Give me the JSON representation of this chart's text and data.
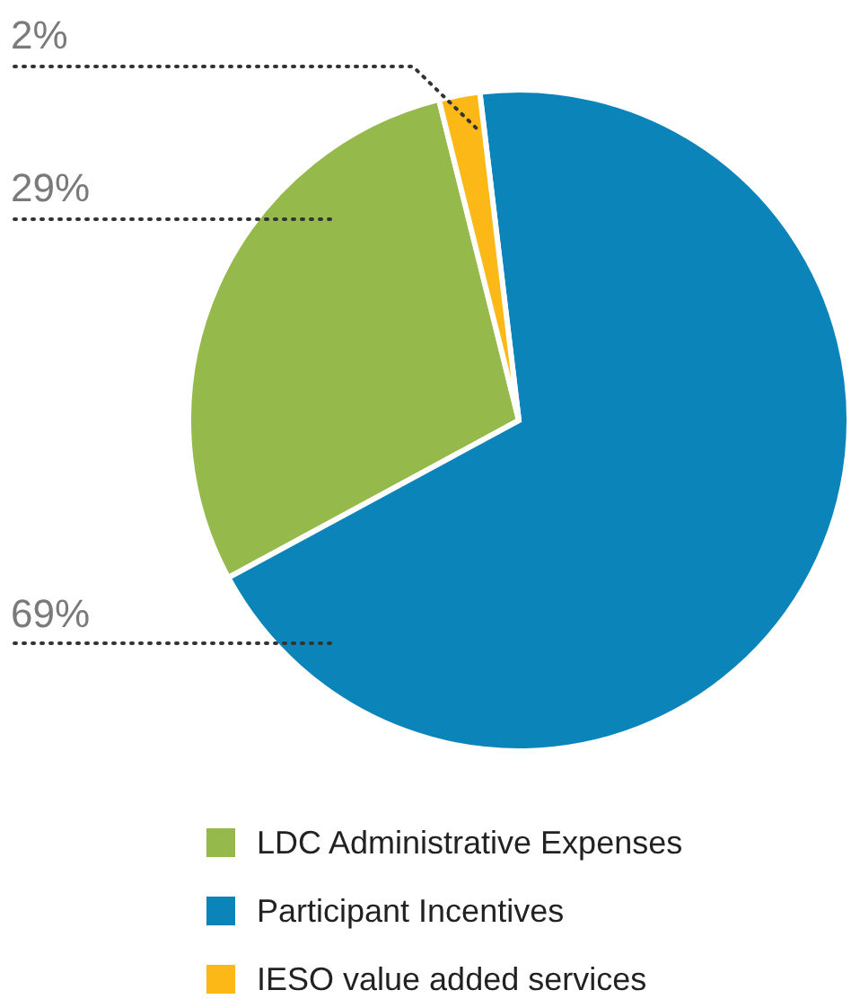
{
  "chart_data": {
    "type": "pie",
    "categories": [
      "LDC Administrative Expenses",
      "Participant Incentives",
      "IESO value added services"
    ],
    "values": [
      29,
      69,
      2
    ],
    "colors": [
      "#95b94b",
      "#0b84b9",
      "#fbb817"
    ],
    "value_labels": [
      "29%",
      "69%",
      "2%"
    ],
    "legend": "bottom"
  }
}
